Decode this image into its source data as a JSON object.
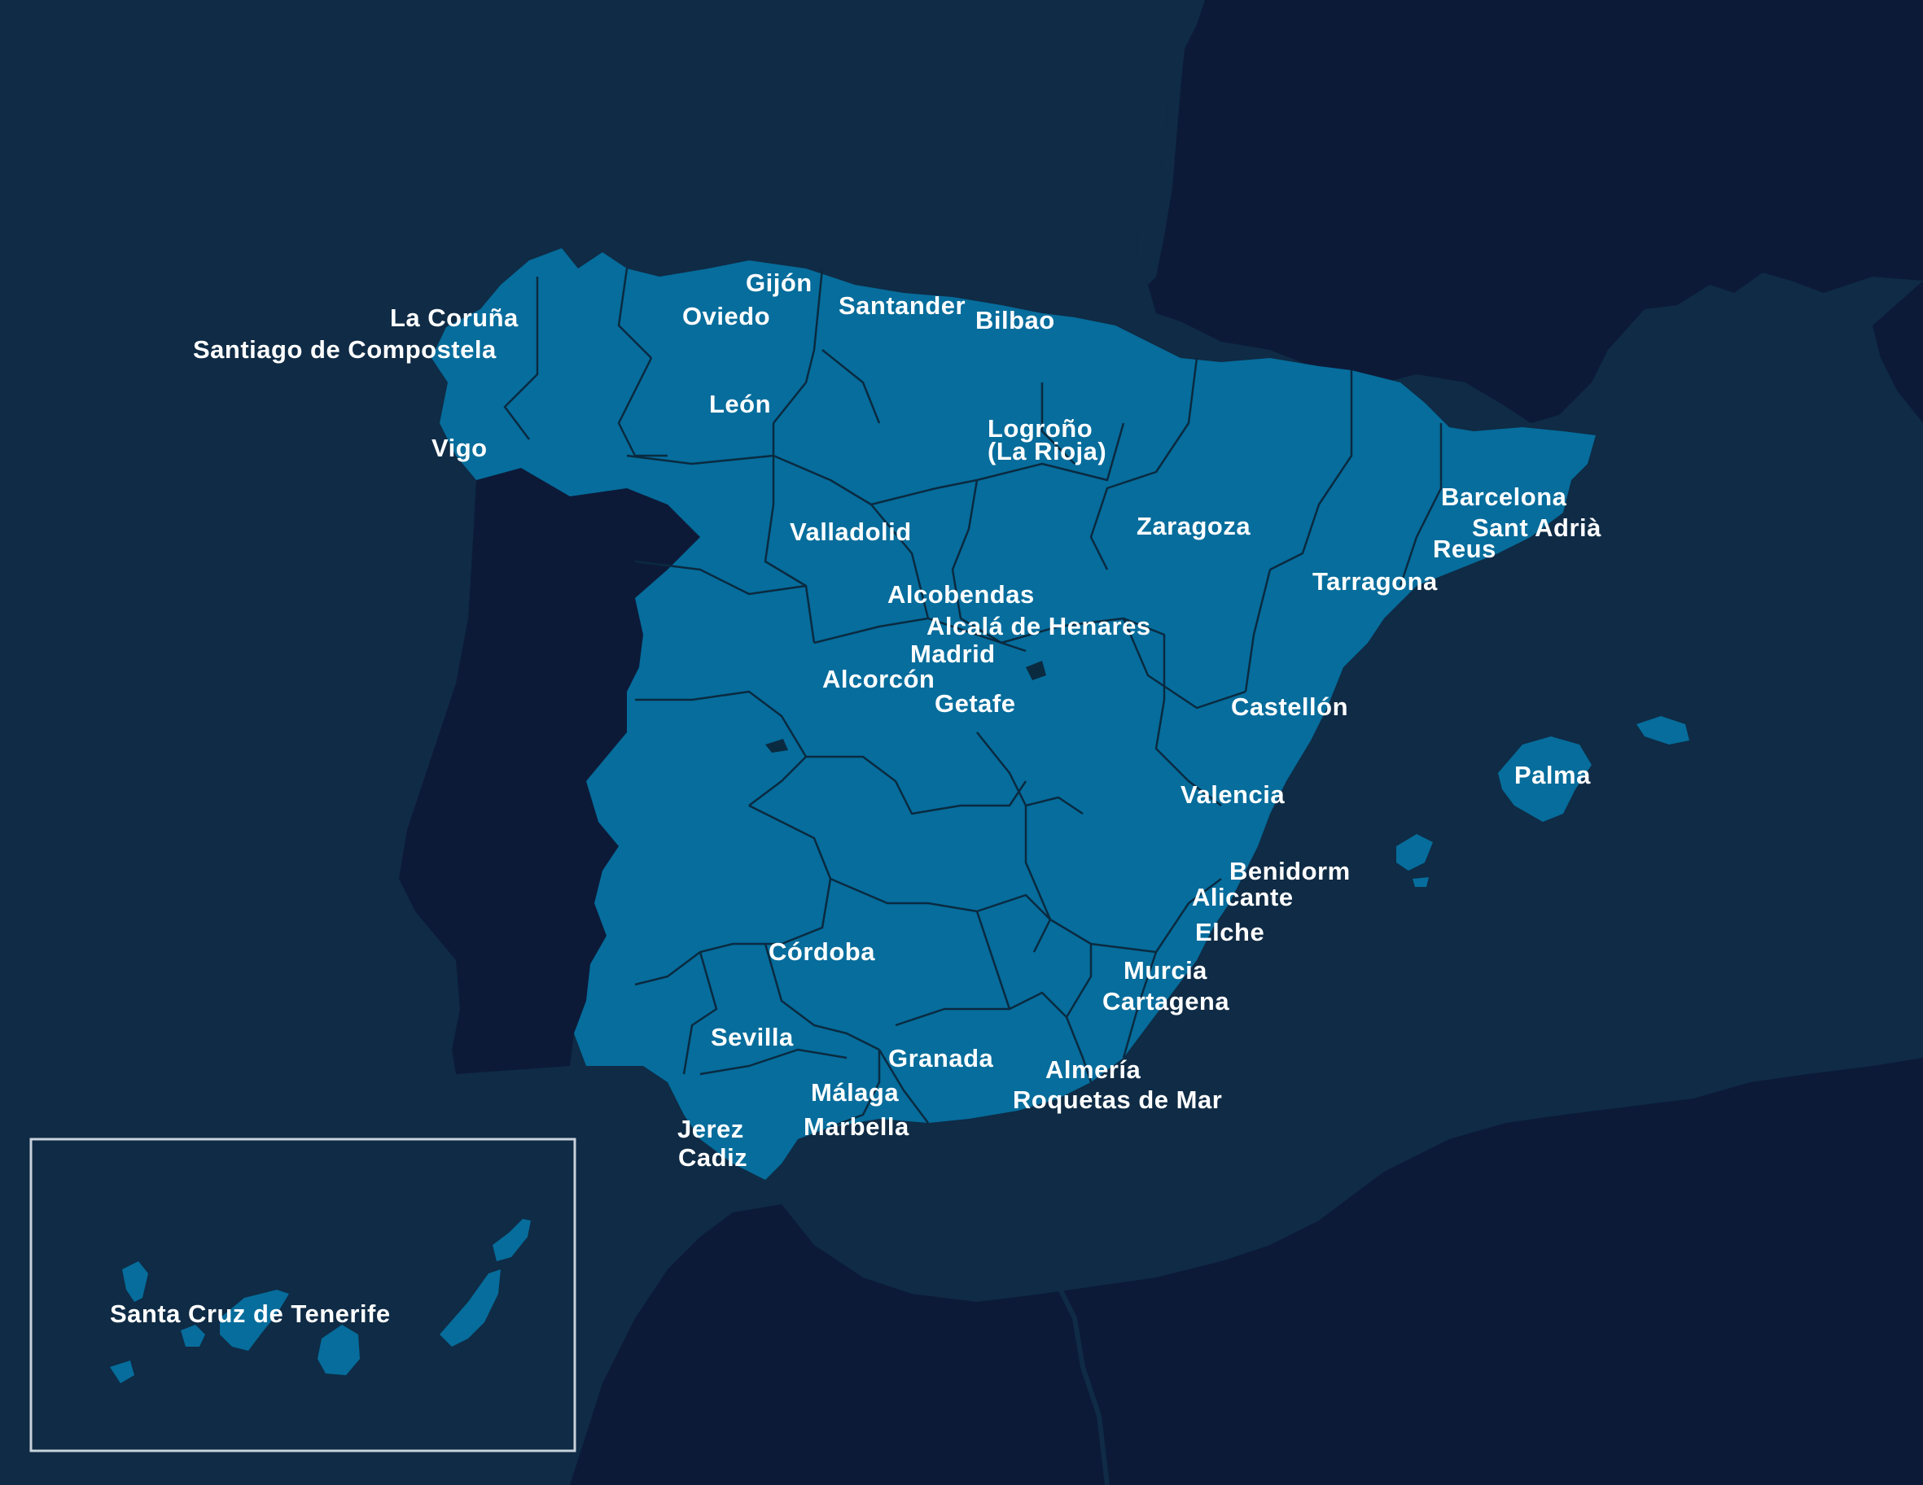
{
  "colors": {
    "sea": "#0f2b45",
    "land_foreign": "#0c1a38",
    "spain": "#066d9c",
    "borders": "#0a2a40",
    "inset_border": "#c8d2da",
    "label": "#ffffff"
  },
  "cities": [
    {
      "id": "gijon",
      "name": "Gijón"
    },
    {
      "id": "oviedo",
      "name": "Oviedo"
    },
    {
      "id": "santander",
      "name": "Santander"
    },
    {
      "id": "bilbao",
      "name": "Bilbao"
    },
    {
      "id": "la-coruna",
      "name": "La Coruña"
    },
    {
      "id": "santiago",
      "name": "Santiago de Compostela"
    },
    {
      "id": "leon",
      "name": "León"
    },
    {
      "id": "logrono",
      "name": "Logroño"
    },
    {
      "id": "la-rioja",
      "name": "(La Rioja)"
    },
    {
      "id": "vigo",
      "name": "Vigo"
    },
    {
      "id": "barcelona",
      "name": "Barcelona"
    },
    {
      "id": "sant-adria",
      "name": "Sant Adrià"
    },
    {
      "id": "reus",
      "name": "Reus"
    },
    {
      "id": "valladolid",
      "name": "Valladolid"
    },
    {
      "id": "zaragoza",
      "name": "Zaragoza"
    },
    {
      "id": "tarragona",
      "name": "Tarragona"
    },
    {
      "id": "alcobendas",
      "name": "Alcobendas"
    },
    {
      "id": "alcala",
      "name": "Alcalá de Henares"
    },
    {
      "id": "madrid",
      "name": "Madrid"
    },
    {
      "id": "alcorcon",
      "name": "Alcorcón"
    },
    {
      "id": "getafe",
      "name": "Getafe"
    },
    {
      "id": "castellon",
      "name": "Castellón"
    },
    {
      "id": "palma",
      "name": "Palma"
    },
    {
      "id": "valencia",
      "name": "Valencia"
    },
    {
      "id": "benidorm",
      "name": "Benidorm"
    },
    {
      "id": "alicante",
      "name": "Alicante"
    },
    {
      "id": "elche",
      "name": "Elche"
    },
    {
      "id": "cordoba",
      "name": "Córdoba"
    },
    {
      "id": "murcia",
      "name": "Murcia"
    },
    {
      "id": "cartagena",
      "name": "Cartagena"
    },
    {
      "id": "sevilla",
      "name": "Sevilla"
    },
    {
      "id": "granada",
      "name": "Granada"
    },
    {
      "id": "almeria",
      "name": "Almería"
    },
    {
      "id": "malaga",
      "name": "Málaga"
    },
    {
      "id": "roquetas",
      "name": "Roquetas de Mar"
    },
    {
      "id": "marbella",
      "name": "Marbella"
    },
    {
      "id": "jerez",
      "name": "Jerez"
    },
    {
      "id": "cadiz",
      "name": "Cadiz"
    },
    {
      "id": "tenerife",
      "name": "Santa Cruz de Tenerife"
    }
  ]
}
